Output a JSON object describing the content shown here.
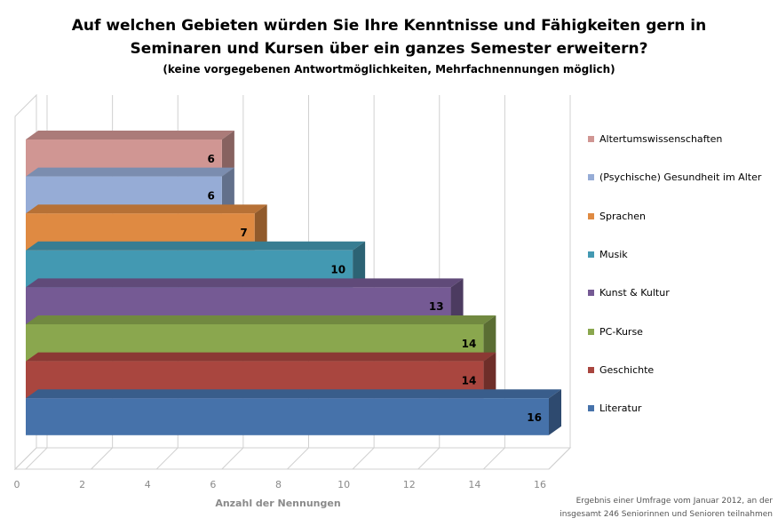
{
  "chart_data": {
    "type": "bar",
    "orientation": "horizontal",
    "style": "3d",
    "title_line1": "Auf welchen Gebieten würden Sie Ihre Kenntnisse und Fähigkeiten gern in",
    "title_line2": "Seminaren und Kursen über ein ganzes Semester erweitern?",
    "subtitle": "(keine vorgegebenen Antwortmöglichkeiten, Mehrfachnennungen möglich)",
    "xlabel": "Anzahl der Nennungen",
    "ylabel": "",
    "xlim": [
      0,
      16
    ],
    "xticks": [
      0,
      2,
      4,
      6,
      8,
      10,
      12,
      14,
      16
    ],
    "grid": true,
    "legend_position": "right",
    "categories": [
      "Altertumswissenschaften",
      "(Psychische) Gesundheit im Alter",
      "Sprachen",
      "Musik",
      "Kunst & Kultur",
      "PC-Kurse",
      "Geschichte",
      "Literatur"
    ],
    "values": [
      6,
      6,
      7,
      10,
      13,
      14,
      14,
      16
    ],
    "colors": [
      "#d09693",
      "#96acd6",
      "#df8a42",
      "#4399b2",
      "#755a94",
      "#8aa74e",
      "#a9463f",
      "#4672aa"
    ],
    "footnote_line1": "Ergebnis einer Umfrage vom Januar 2012, an der",
    "footnote_line2": "insgesamt 246 Seniorinnen und Senioren teilnahmen"
  }
}
